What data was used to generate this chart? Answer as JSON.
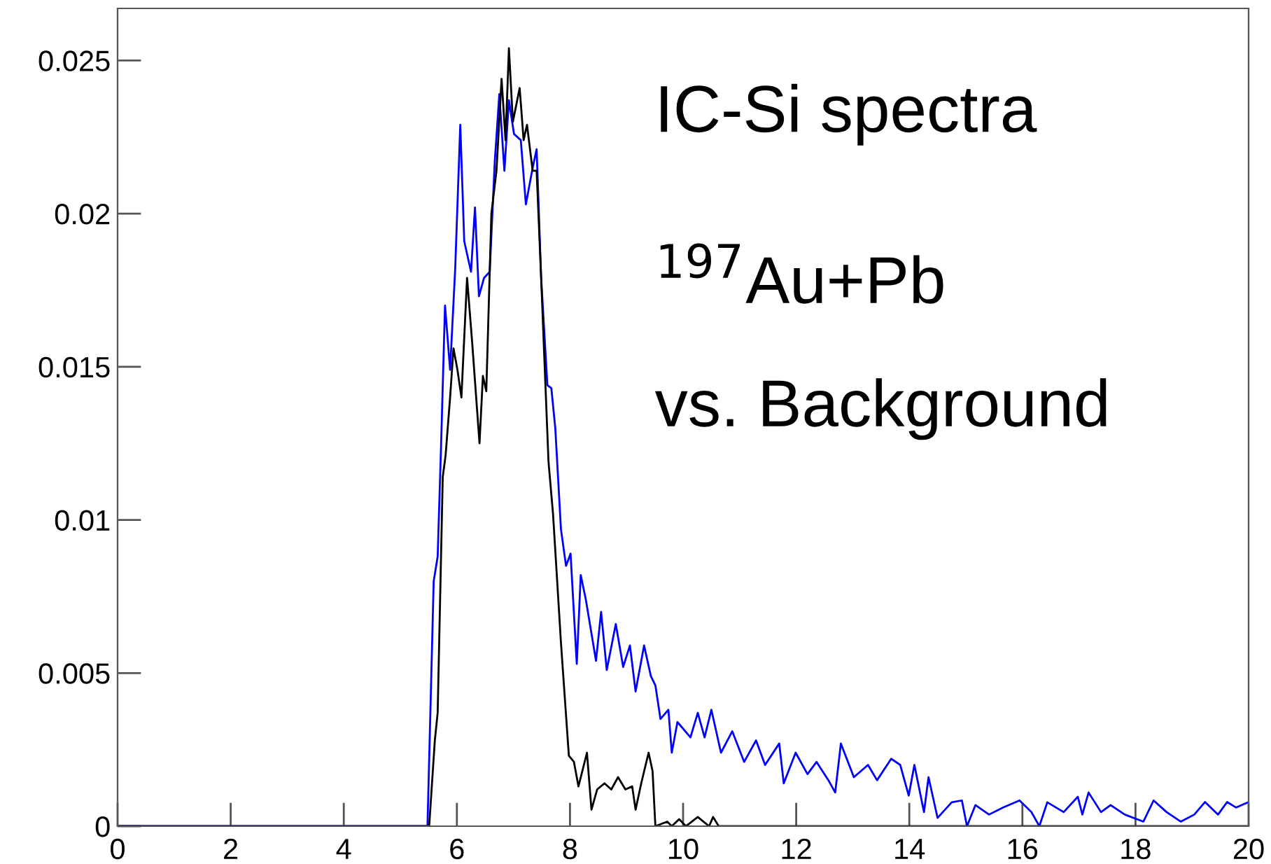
{
  "chart_data": {
    "type": "line",
    "annotations": [
      "IC-Si spectra",
      "$^{197}$Au+Pb",
      "vs. Background"
    ],
    "xlim": [
      0,
      20
    ],
    "xticks": [
      0,
      2,
      4,
      6,
      8,
      10,
      12,
      14,
      16,
      18,
      20
    ],
    "ylim": [
      0,
      0.0267
    ],
    "yticks": [
      0,
      0.005,
      0.01,
      0.015,
      0.02,
      0.025
    ],
    "grid": false,
    "marker": "none",
    "line_style": "solid",
    "series": [
      {
        "color": "#0000ff",
        "x": [
          0,
          5.48,
          5.59,
          5.66,
          5.72,
          5.79,
          5.88,
          5.97,
          6.06,
          6.13,
          6.25,
          6.32,
          6.39,
          6.48,
          6.58,
          6.67,
          6.75,
          6.84,
          6.92,
          7.01,
          7.13,
          7.22,
          7.34,
          7.41,
          7.49,
          7.6,
          7.67,
          7.74,
          7.84,
          7.93,
          8.01,
          8.12,
          8.19,
          8.28,
          8.46,
          8.55,
          8.65,
          8.81,
          8.94,
          9.06,
          9.16,
          9.31,
          9.43,
          9.51,
          9.6,
          9.74,
          9.8,
          9.9,
          10.13,
          10.26,
          10.38,
          10.5,
          10.67,
          10.87,
          11.08,
          11.29,
          11.45,
          11.7,
          11.78,
          11.99,
          12.2,
          12.36,
          12.57,
          12.69,
          12.79,
          13.02,
          13.27,
          13.43,
          13.68,
          13.84,
          13.99,
          14.09,
          14.26,
          14.34,
          14.5,
          14.75,
          14.93,
          15.02,
          15.17,
          15.41,
          15.66,
          15.95,
          16.16,
          16.3,
          16.44,
          16.73,
          16.98,
          17.06,
          17.17,
          17.39,
          17.56,
          17.81,
          18.14,
          18.32,
          18.55,
          18.8,
          19.04,
          19.23,
          19.46,
          19.62,
          19.78,
          19.99
        ],
        "values": [
          0,
          0,
          0.008,
          0.0088,
          0.0124,
          0.017,
          0.0149,
          0.0182,
          0.0229,
          0.0191,
          0.0181,
          0.0202,
          0.0173,
          0.0179,
          0.0181,
          0.0217,
          0.0239,
          0.0214,
          0.0237,
          0.0226,
          0.0224,
          0.0203,
          0.0215,
          0.0221,
          0.0179,
          0.0144,
          0.0143,
          0.013,
          0.0097,
          0.0085,
          0.0089,
          0.0053,
          0.0082,
          0.0074,
          0.0054,
          0.007,
          0.0051,
          0.0066,
          0.0052,
          0.0059,
          0.0044,
          0.0059,
          0.0049,
          0.0046,
          0.0035,
          0.0038,
          0.0024,
          0.0034,
          0.0029,
          0.0037,
          0.0029,
          0.0038,
          0.0024,
          0.0031,
          0.0021,
          0.0028,
          0.002,
          0.0027,
          0.0014,
          0.0024,
          0.0017,
          0.0021,
          0.0015,
          0.0011,
          0.0027,
          0.0016,
          0.002,
          0.0015,
          0.0022,
          0.002,
          0.001,
          0.002,
          0.00046,
          0.0016,
          0.00027,
          0.00078,
          0.00084,
          0,
          0.00069,
          0.00038,
          0.00061,
          0.00084,
          0.00046,
          0,
          0.00078,
          0.00046,
          0.00096,
          0.00038,
          0.0011,
          0.00046,
          0.00069,
          0.00038,
          0.00015,
          0.00084,
          0.00046,
          0.00015,
          0.00038,
          0.00079,
          0.00038,
          0.00079,
          0.00061,
          0.00078
        ]
      },
      {
        "color": "#000000",
        "x": [
          0,
          5.51,
          5.61,
          5.66,
          5.75,
          5.8,
          5.88,
          5.94,
          6.01,
          6.08,
          6.18,
          6.27,
          6.4,
          6.46,
          6.52,
          6.61,
          6.7,
          6.79,
          6.86,
          6.92,
          6.99,
          7.11,
          7.18,
          7.24,
          7.34,
          7.41,
          7.49,
          7.62,
          7.7,
          7.84,
          7.98,
          8.07,
          8.15,
          8.3,
          8.38,
          8.48,
          8.61,
          8.73,
          8.85,
          8.98,
          9.1,
          9.16,
          9.26,
          9.39,
          9.46,
          9.51,
          9.72,
          9.8,
          9.93,
          10.05,
          10.26,
          10.46,
          10.53,
          10.63,
          20
        ],
        "values": [
          0,
          0,
          0.0028,
          0.0037,
          0.0114,
          0.0121,
          0.014,
          0.0156,
          0.0149,
          0.014,
          0.0179,
          0.0158,
          0.0125,
          0.0147,
          0.0142,
          0.02,
          0.0214,
          0.0244,
          0.0224,
          0.0254,
          0.023,
          0.0241,
          0.0224,
          0.0229,
          0.0214,
          0.0214,
          0.0179,
          0.0119,
          0.0102,
          0.006,
          0.0023,
          0.0021,
          0.0013,
          0.0024,
          0.00054,
          0.0012,
          0.0014,
          0.0012,
          0.0016,
          0.0012,
          0.0013,
          0.00054,
          0.0014,
          0.0024,
          0.0018,
          0,
          0.00015,
          0,
          0.00023,
          0,
          0.0003,
          0,
          0.0003,
          0,
          0
        ]
      }
    ]
  }
}
